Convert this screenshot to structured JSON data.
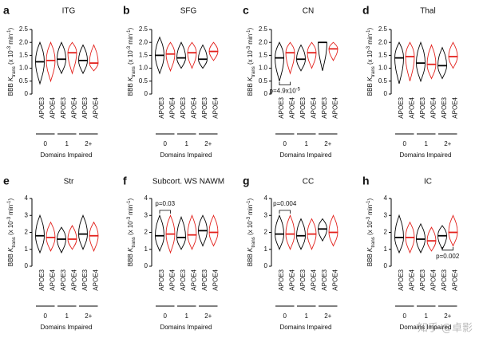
{
  "chart_data": [
    {
      "type": "violin",
      "panel": "a",
      "title": "ITG",
      "y_label": [
        {
          "text": "BBB "
        },
        {
          "text": "K",
          "italic": true
        },
        {
          "text": "trans",
          "script": "sub"
        },
        {
          "text": " (x 10"
        },
        {
          "text": "-3",
          "script": "super"
        },
        {
          "text": " min"
        },
        {
          "text": "-1",
          "script": "super"
        },
        {
          "text": ")"
        }
      ],
      "categories": [
        "APOE3",
        "APOE4",
        "APOE3",
        "APOE4",
        "APOE3",
        "APOE4"
      ],
      "colors": [
        "#000000",
        "#e3211c",
        "#000000",
        "#e3211c",
        "#000000",
        "#e3211c"
      ],
      "groups": [
        "0",
        "1",
        "2+"
      ],
      "x_label": "Domains Impaired",
      "medians": [
        1.25,
        1.3,
        1.35,
        1.6,
        1.3,
        1.2
      ],
      "mins": [
        0.4,
        0.5,
        0.8,
        0.8,
        0.8,
        0.9
      ],
      "maxs": [
        2.0,
        2.0,
        2.0,
        2.0,
        1.9,
        1.9
      ],
      "ylim": [
        0,
        2.5
      ],
      "yticks": [
        0,
        {
          "value": 0.5,
          "label": "0.5"
        },
        {
          "value": 1,
          "label": "1.0"
        },
        {
          "value": 1.5,
          "label": "1.5"
        },
        {
          "value": 2,
          "label": "2.0"
        },
        {
          "value": 2.5,
          "label": "2.5"
        }
      ]
    },
    {
      "type": "violin",
      "panel": "b",
      "title": "SFG",
      "y_label": [
        {
          "text": "BBB "
        },
        {
          "text": "K",
          "italic": true
        },
        {
          "text": "trans",
          "script": "sub"
        },
        {
          "text": " (x 10"
        },
        {
          "text": "-3",
          "script": "super"
        },
        {
          "text": " min"
        },
        {
          "text": "-1",
          "script": "super"
        },
        {
          "text": ")"
        }
      ],
      "categories": [
        "APOE3",
        "APOE4",
        "APOE3",
        "APOE4",
        "APOE3",
        "APOE4"
      ],
      "colors": [
        "#000000",
        "#e3211c",
        "#000000",
        "#e3211c",
        "#000000",
        "#e3211c"
      ],
      "groups": [
        "0",
        "1",
        "2+"
      ],
      "x_label": "Domains Impaired",
      "medians": [
        1.5,
        1.55,
        1.4,
        1.6,
        1.35,
        1.65
      ],
      "mins": [
        0.8,
        0.9,
        1.0,
        1.0,
        1.0,
        1.3
      ],
      "maxs": [
        2.2,
        2.0,
        2.0,
        2.0,
        1.9,
        2.0
      ],
      "ylim": [
        0,
        2.5
      ],
      "yticks": [
        0,
        {
          "value": 0.5,
          "label": "0.5"
        },
        {
          "value": 1,
          "label": "1.0"
        },
        {
          "value": 1.5,
          "label": "1.5"
        },
        {
          "value": 2,
          "label": "2.0"
        },
        {
          "value": 2.5,
          "label": "2.5"
        }
      ]
    },
    {
      "type": "violin",
      "panel": "c",
      "title": "CN",
      "y_label": [
        {
          "text": "BBB "
        },
        {
          "text": "K",
          "italic": true
        },
        {
          "text": "trans",
          "script": "sub"
        },
        {
          "text": " (x 10"
        },
        {
          "text": "-3",
          "script": "super"
        },
        {
          "text": " min"
        },
        {
          "text": "-1",
          "script": "super"
        },
        {
          "text": ")"
        }
      ],
      "categories": [
        "APOE3",
        "APOE4",
        "APOE3",
        "APOE4",
        "APOE3",
        "APOE4"
      ],
      "colors": [
        "#000000",
        "#e3211c",
        "#000000",
        "#e3211c",
        "#000000",
        "#e3211c"
      ],
      "groups": [
        "0",
        "1",
        "2+"
      ],
      "x_label": "Domains Impaired",
      "medians": [
        1.4,
        1.6,
        1.35,
        1.6,
        2.0,
        1.75
      ],
      "mins": [
        0.5,
        0.8,
        0.9,
        1.0,
        0.9,
        1.3
      ],
      "maxs": [
        2.0,
        2.0,
        1.9,
        2.0,
        2.0,
        2.0
      ],
      "ylim": [
        0,
        2.5
      ],
      "yticks": [
        0,
        {
          "value": 0.5,
          "label": "0.5"
        },
        {
          "value": 1,
          "label": "1.0"
        },
        {
          "value": 1.5,
          "label": "1.5"
        },
        {
          "value": 2,
          "label": "2.0"
        },
        {
          "value": 2.5,
          "label": "2.5"
        }
      ],
      "annotations": [
        {
          "text": [
            {
              "text": "p=4.9x10"
            },
            {
              "text": "-5",
              "script": "super"
            }
          ],
          "from": 0,
          "to": 1,
          "y": 0.35,
          "side": "below"
        }
      ]
    },
    {
      "type": "violin",
      "panel": "d",
      "title": "Thal",
      "y_label": [
        {
          "text": "BBB "
        },
        {
          "text": "K",
          "italic": true
        },
        {
          "text": "trans",
          "script": "sub"
        },
        {
          "text": " (x 10"
        },
        {
          "text": "-3",
          "script": "super"
        },
        {
          "text": " min"
        },
        {
          "text": "-1",
          "script": "super"
        },
        {
          "text": ")"
        }
      ],
      "categories": [
        "APOE3",
        "APOE4",
        "APOE3",
        "APOE4",
        "APOE3",
        "APOE4"
      ],
      "colors": [
        "#000000",
        "#e3211c",
        "#000000",
        "#e3211c",
        "#000000",
        "#e3211c"
      ],
      "groups": [
        "0",
        "1",
        "2+"
      ],
      "x_label": "Domains Impaired",
      "medians": [
        1.4,
        1.45,
        1.2,
        1.15,
        1.1,
        1.45
      ],
      "mins": [
        0.4,
        0.5,
        0.5,
        0.6,
        0.6,
        1.0
      ],
      "maxs": [
        2.0,
        2.0,
        2.0,
        1.9,
        1.8,
        2.0
      ],
      "ylim": [
        0,
        2.5
      ],
      "yticks": [
        0,
        {
          "value": 0.5,
          "label": "0.5"
        },
        {
          "value": 1,
          "label": "1.0"
        },
        {
          "value": 1.5,
          "label": "1.5"
        },
        {
          "value": 2,
          "label": "2.0"
        },
        {
          "value": 2.5,
          "label": "2.5"
        }
      ]
    },
    {
      "type": "violin",
      "panel": "e",
      "title": "Str",
      "y_label": [
        {
          "text": "BBB "
        },
        {
          "text": "K",
          "italic": true
        },
        {
          "text": "trans",
          "script": "sub"
        },
        {
          "text": " (x 10"
        },
        {
          "text": "-3",
          "script": "super"
        },
        {
          "text": " min"
        },
        {
          "text": "-1",
          "script": "super"
        },
        {
          "text": ")"
        }
      ],
      "categories": [
        "APOE3",
        "APOE4",
        "APOE3",
        "APOE4",
        "APOE3",
        "APOE4"
      ],
      "colors": [
        "#000000",
        "#e3211c",
        "#000000",
        "#e3211c",
        "#000000",
        "#e3211c"
      ],
      "groups": [
        "0",
        "1",
        "2+"
      ],
      "x_label": "Domains Impaired",
      "medians": [
        1.8,
        1.7,
        1.6,
        1.6,
        1.9,
        1.8
      ],
      "mins": [
        0.8,
        0.9,
        0.8,
        1.0,
        1.0,
        0.9
      ],
      "maxs": [
        3.0,
        2.6,
        2.3,
        2.4,
        3.0,
        2.6
      ],
      "ylim": [
        0,
        4
      ],
      "yticks": [
        0,
        1,
        2,
        3,
        4
      ]
    },
    {
      "type": "violin",
      "panel": "f",
      "title": "Subcort. WS NAWM",
      "y_label": [
        {
          "text": "BBB "
        },
        {
          "text": "K",
          "italic": true
        },
        {
          "text": "trans",
          "script": "sub"
        },
        {
          "text": " (x 10"
        },
        {
          "text": "-3",
          "script": "super"
        },
        {
          "text": " min"
        },
        {
          "text": "-1",
          "script": "super"
        },
        {
          "text": ")"
        }
      ],
      "categories": [
        "APOE3",
        "APOE4",
        "APOE3",
        "APOE4",
        "APOE3",
        "APOE4"
      ],
      "colors": [
        "#000000",
        "#e3211c",
        "#000000",
        "#e3211c",
        "#000000",
        "#e3211c"
      ],
      "groups": [
        "0",
        "1",
        "2+"
      ],
      "x_label": "Domains Impaired",
      "medians": [
        1.8,
        1.9,
        1.7,
        1.85,
        2.1,
        2.0
      ],
      "mins": [
        0.9,
        0.8,
        1.0,
        1.0,
        1.2,
        1.2
      ],
      "maxs": [
        3.0,
        3.0,
        2.9,
        3.0,
        3.0,
        3.0
      ],
      "ylim": [
        0,
        4
      ],
      "yticks": [
        0,
        1,
        2,
        3,
        4
      ],
      "annotations": [
        {
          "text": [
            {
              "text": "p=0.03"
            }
          ],
          "from": 0,
          "to": 1,
          "y": 3.3,
          "side": "above"
        }
      ]
    },
    {
      "type": "violin",
      "panel": "g",
      "title": "CC",
      "y_label": [
        {
          "text": "BBB "
        },
        {
          "text": "K",
          "italic": true
        },
        {
          "text": "trans",
          "script": "sub"
        },
        {
          "text": " (x 10"
        },
        {
          "text": "-3",
          "script": "super"
        },
        {
          "text": " min"
        },
        {
          "text": "-1",
          "script": "super"
        },
        {
          "text": ")"
        }
      ],
      "categories": [
        "APOE3",
        "APOE4",
        "APOE3",
        "APOE4",
        "APOE3",
        "APOE4"
      ],
      "colors": [
        "#000000",
        "#e3211c",
        "#000000",
        "#e3211c",
        "#000000",
        "#e3211c"
      ],
      "groups": [
        "0",
        "1",
        "2+"
      ],
      "x_label": "Domains Impaired",
      "medians": [
        1.9,
        1.9,
        1.8,
        1.9,
        2.2,
        2.0
      ],
      "mins": [
        1.0,
        1.0,
        1.0,
        1.0,
        1.5,
        1.2
      ],
      "maxs": [
        3.0,
        3.0,
        2.8,
        2.8,
        2.8,
        3.0
      ],
      "ylim": [
        0,
        4
      ],
      "yticks": [
        0,
        1,
        2,
        3,
        4
      ],
      "annotations": [
        {
          "text": [
            {
              "text": "p=0.004"
            }
          ],
          "from": 0,
          "to": 1,
          "y": 3.3,
          "side": "above"
        }
      ]
    },
    {
      "type": "violin",
      "panel": "h",
      "title": "IC",
      "y_label": [
        {
          "text": "BBB "
        },
        {
          "text": "K",
          "italic": true
        },
        {
          "text": "trans",
          "script": "sub"
        },
        {
          "text": " (x 10"
        },
        {
          "text": "-3",
          "script": "super"
        },
        {
          "text": " min"
        },
        {
          "text": "-1",
          "script": "super"
        },
        {
          "text": ")"
        }
      ],
      "categories": [
        "APOE3",
        "APOE4",
        "APOE3",
        "APOE4",
        "APOE3",
        "APOE4"
      ],
      "colors": [
        "#000000",
        "#e3211c",
        "#000000",
        "#e3211c",
        "#000000",
        "#e3211c"
      ],
      "groups": [
        "0",
        "1",
        "2+"
      ],
      "x_label": "Domains Impaired",
      "medians": [
        1.7,
        1.7,
        1.6,
        1.5,
        1.8,
        2.0
      ],
      "mins": [
        0.8,
        0.8,
        0.8,
        0.9,
        1.0,
        1.2
      ],
      "maxs": [
        3.0,
        2.6,
        2.5,
        2.3,
        2.4,
        3.0
      ],
      "ylim": [
        0,
        4
      ],
      "yticks": [
        0,
        1,
        2,
        3,
        4
      ],
      "annotations": [
        {
          "text": [
            {
              "text": "p=0.002"
            }
          ],
          "from": 4,
          "to": 5,
          "y": 0.95,
          "side": "below"
        }
      ]
    }
  ],
  "watermark": "知乎 @卓影"
}
